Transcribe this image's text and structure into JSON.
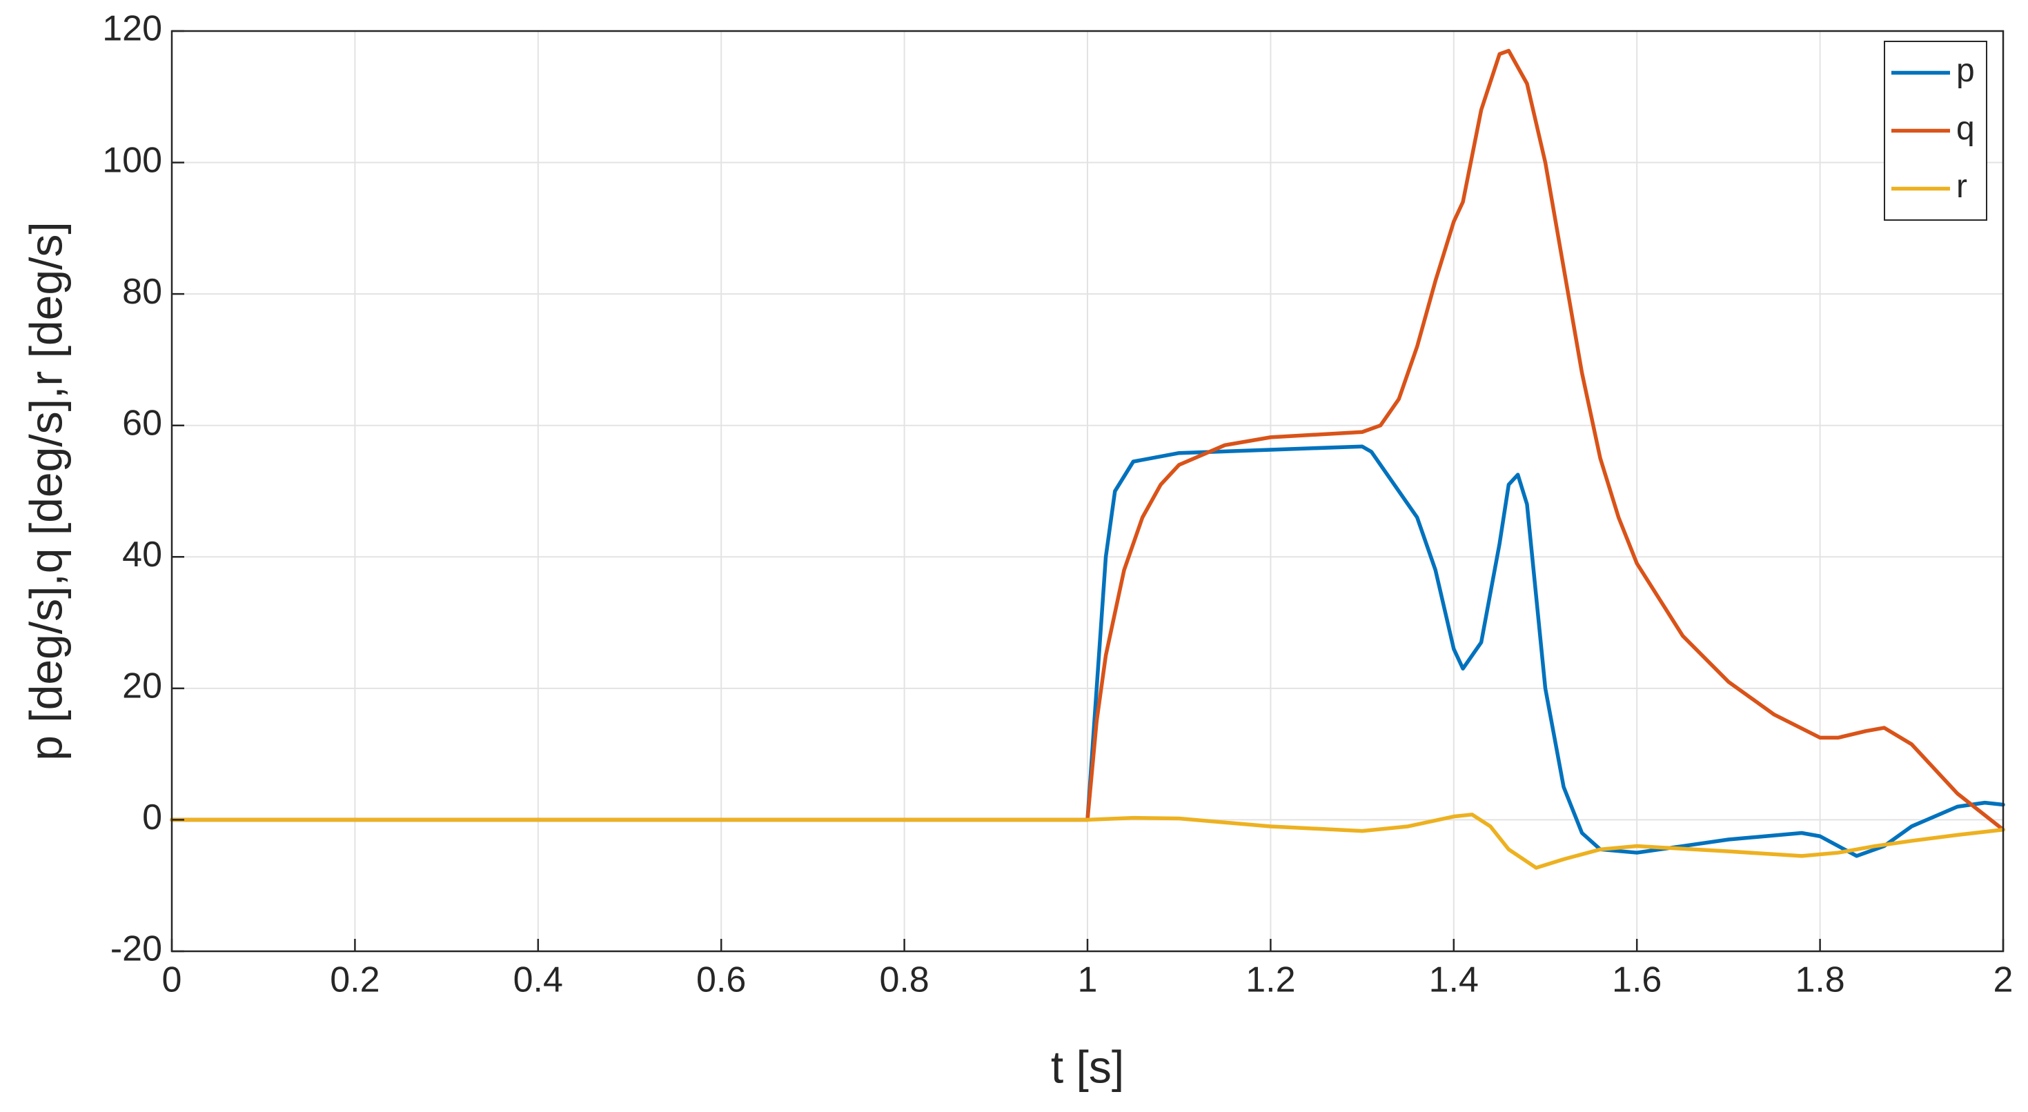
{
  "chart_data": {
    "type": "line",
    "xlabel": "t [s]",
    "ylabel": "p [deg/s],q [deg/s],r [deg/s]",
    "xlim": [
      0,
      2
    ],
    "ylim": [
      -20,
      120
    ],
    "xticks": [
      0,
      0.2,
      0.4,
      0.6,
      0.8,
      1,
      1.2,
      1.4,
      1.6,
      1.8,
      2
    ],
    "yticks": [
      -20,
      0,
      20,
      40,
      60,
      80,
      100,
      120
    ],
    "grid": true,
    "legend": "northeast",
    "series": [
      {
        "name": "p",
        "color": "#0072BD",
        "x": [
          0,
          1.0,
          1.01,
          1.02,
          1.03,
          1.05,
          1.1,
          1.2,
          1.3,
          1.31,
          1.33,
          1.36,
          1.38,
          1.4,
          1.41,
          1.43,
          1.45,
          1.46,
          1.47,
          1.48,
          1.5,
          1.52,
          1.54,
          1.56,
          1.6,
          1.65,
          1.7,
          1.78,
          1.8,
          1.84,
          1.87,
          1.9,
          1.95,
          1.98,
          2.0
        ],
        "values": [
          0,
          0,
          20,
          40,
          50,
          54.5,
          55.8,
          56.3,
          56.8,
          56,
          52,
          46,
          38,
          26,
          23,
          27,
          42,
          51,
          52.5,
          48,
          20,
          5,
          -2,
          -4.5,
          -5,
          -4,
          -3,
          -2,
          -2.5,
          -5.5,
          -4,
          -1,
          2,
          2.6,
          2.3
        ]
      },
      {
        "name": "q",
        "color": "#D95319",
        "x": [
          0,
          1.0,
          1.01,
          1.02,
          1.04,
          1.06,
          1.08,
          1.1,
          1.15,
          1.2,
          1.3,
          1.32,
          1.34,
          1.36,
          1.38,
          1.4,
          1.41,
          1.43,
          1.45,
          1.46,
          1.48,
          1.5,
          1.52,
          1.54,
          1.56,
          1.58,
          1.6,
          1.65,
          1.7,
          1.75,
          1.8,
          1.82,
          1.85,
          1.87,
          1.9,
          1.95,
          2.0
        ],
        "values": [
          0,
          0,
          15,
          25,
          38,
          46,
          51,
          54,
          57,
          58.2,
          59,
          60,
          64,
          72,
          82,
          91,
          94,
          108,
          116.5,
          117,
          112,
          100,
          84,
          68,
          55,
          46,
          39,
          28,
          21,
          16,
          12.5,
          12.5,
          13.5,
          14,
          11.5,
          4,
          -1.5
        ]
      },
      {
        "name": "r",
        "color": "#EDB120",
        "x": [
          0,
          1.0,
          1.05,
          1.1,
          1.2,
          1.3,
          1.35,
          1.4,
          1.42,
          1.44,
          1.46,
          1.49,
          1.52,
          1.56,
          1.6,
          1.7,
          1.78,
          1.82,
          1.86,
          1.9,
          1.95,
          2.0
        ],
        "values": [
          0,
          0,
          0.3,
          0.2,
          -1,
          -1.7,
          -1,
          0.5,
          0.8,
          -1,
          -4.5,
          -7.3,
          -6,
          -4.5,
          -4,
          -4.8,
          -5.5,
          -5,
          -4,
          -3.2,
          -2.3,
          -1.5
        ]
      }
    ]
  }
}
